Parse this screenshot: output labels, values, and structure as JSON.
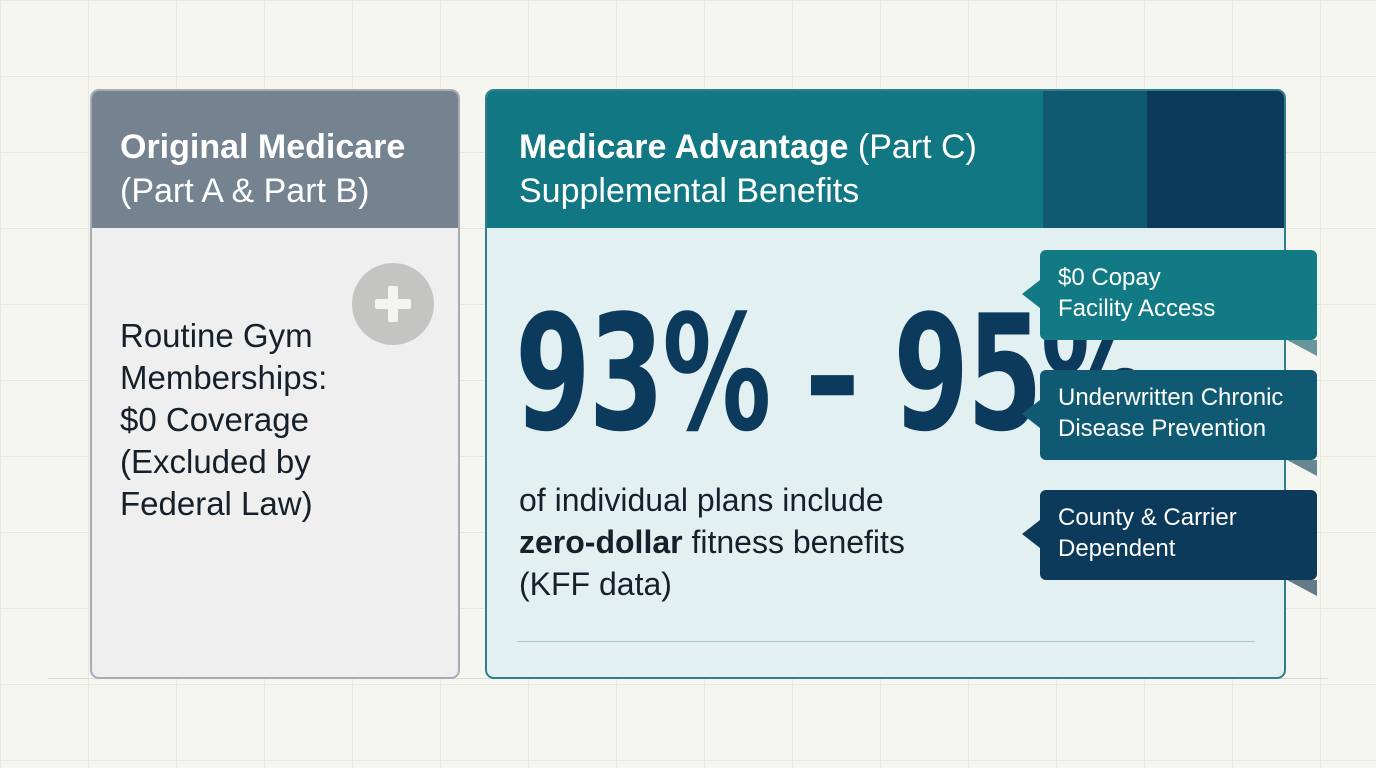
{
  "original_medicare": {
    "title_bold": "Original Medicare",
    "title_sub": "(Part A & Part B)",
    "icon": "plus-icon",
    "body_lines": [
      "Routine Gym",
      "Memberships:",
      "$0 Coverage",
      "(Excluded by",
      "Federal Law)"
    ]
  },
  "medicare_advantage": {
    "title_bold": "Medicare Advantage",
    "title_rest": " (Part C)",
    "title_line2": "Supplemental Benefits",
    "stat": "93% – 95%",
    "desc_line1": "of individual plans include",
    "desc_bold": "zero-dollar",
    "desc_line2_rest": " fitness benefits",
    "desc_line3": "(KFF data)"
  },
  "callouts": [
    {
      "line1": "$0 Copay",
      "line2": "Facility Access"
    },
    {
      "line1": "Underwritten Chronic",
      "line2": "Disease Prevention"
    },
    {
      "line1": "County & Carrier",
      "line2": "Dependent"
    }
  ],
  "colors": {
    "left_header": "#758391",
    "right_header": "#107783",
    "stat_navy": "#0c3a5c",
    "callout_1": "#127a84",
    "callout_2": "#0f5a72",
    "callout_3": "#0b3a5b"
  }
}
